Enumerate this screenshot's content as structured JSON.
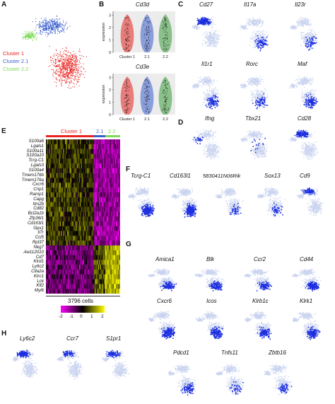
{
  "panels": {
    "A": "A",
    "B": "B",
    "C": "C",
    "D": "D",
    "E": "E",
    "F": "F",
    "G": "G",
    "H": "H"
  },
  "panelA": {
    "legend": [
      {
        "label": "Cluster 1",
        "color": "#e8231f"
      },
      {
        "label": "Cluster 2.1",
        "color": "#3a5fcd"
      },
      {
        "label": "Cluster 2.2",
        "color": "#7ed957"
      }
    ]
  },
  "panelB": {
    "plots": [
      {
        "title": "Cd3d",
        "ylabel": "expression",
        "yticks": [
          "0",
          "1",
          "2",
          "3"
        ],
        "xticks": [
          "Cluster 1",
          "2.1",
          "2.2"
        ]
      },
      {
        "title": "Cd3e",
        "ylabel": "expression",
        "yticks": [
          "0",
          "1",
          "2",
          "3"
        ],
        "xticks": [
          "Cluster 1",
          "2.1",
          "2.2"
        ]
      }
    ]
  },
  "panelC": {
    "genes": [
      "Cd27",
      "Il17a",
      "Il23r",
      "Il1r1",
      "Rorc",
      "Maf"
    ]
  },
  "panelD": {
    "genes": [
      "Ifng",
      "Tbx21",
      "Cd28"
    ]
  },
  "panelE": {
    "header": [
      {
        "label": "Cluster 1",
        "color": "#e8231f"
      },
      {
        "label": "2.1",
        "color": "#3a5fcd"
      },
      {
        "label": "2.2",
        "color": "#7ed957"
      }
    ],
    "genes": [
      "S100a6",
      "Lgals1",
      "S100a11",
      "S100a10",
      "Tcrg-C1",
      "Lgals3",
      "S100a4",
      "Tmem176b",
      "Tmem176a",
      "Cxcr6",
      "Crip1",
      "Ramp1",
      "Capg",
      "Itm2b",
      "Cd82",
      "Bcl2a1b",
      "Zfp36l1",
      "Cd163l1",
      "Gpx1",
      "Il7r",
      "Ccl5",
      "Rpl37",
      "Nkg7",
      "Aw112010",
      "Cd7",
      "Klrd1",
      "Ly6c2",
      "Ctla2a",
      "Klrc1",
      "Lck",
      "Klf2",
      "Myl6"
    ],
    "cells_label": "3796 cells",
    "colorbar_ticks": [
      "-2",
      "-1",
      "0",
      "1",
      "2"
    ]
  },
  "panelF": {
    "genes": [
      "Tcrg-C1",
      "Cd163l1",
      "5830411N06Rik",
      "Sox13",
      "Cd9"
    ]
  },
  "panelG": {
    "genes": [
      "Amica1",
      "Blk",
      "Ccr2",
      "Cd44",
      "Cxcr6",
      "Icos",
      "Klrb1c",
      "Klrk1",
      "Pdcd1",
      "Tnfs11",
      "Zbtb16"
    ]
  },
  "panelH": {
    "genes": [
      "Ly6c2",
      "Ccr7",
      "S1pr1"
    ]
  }
}
